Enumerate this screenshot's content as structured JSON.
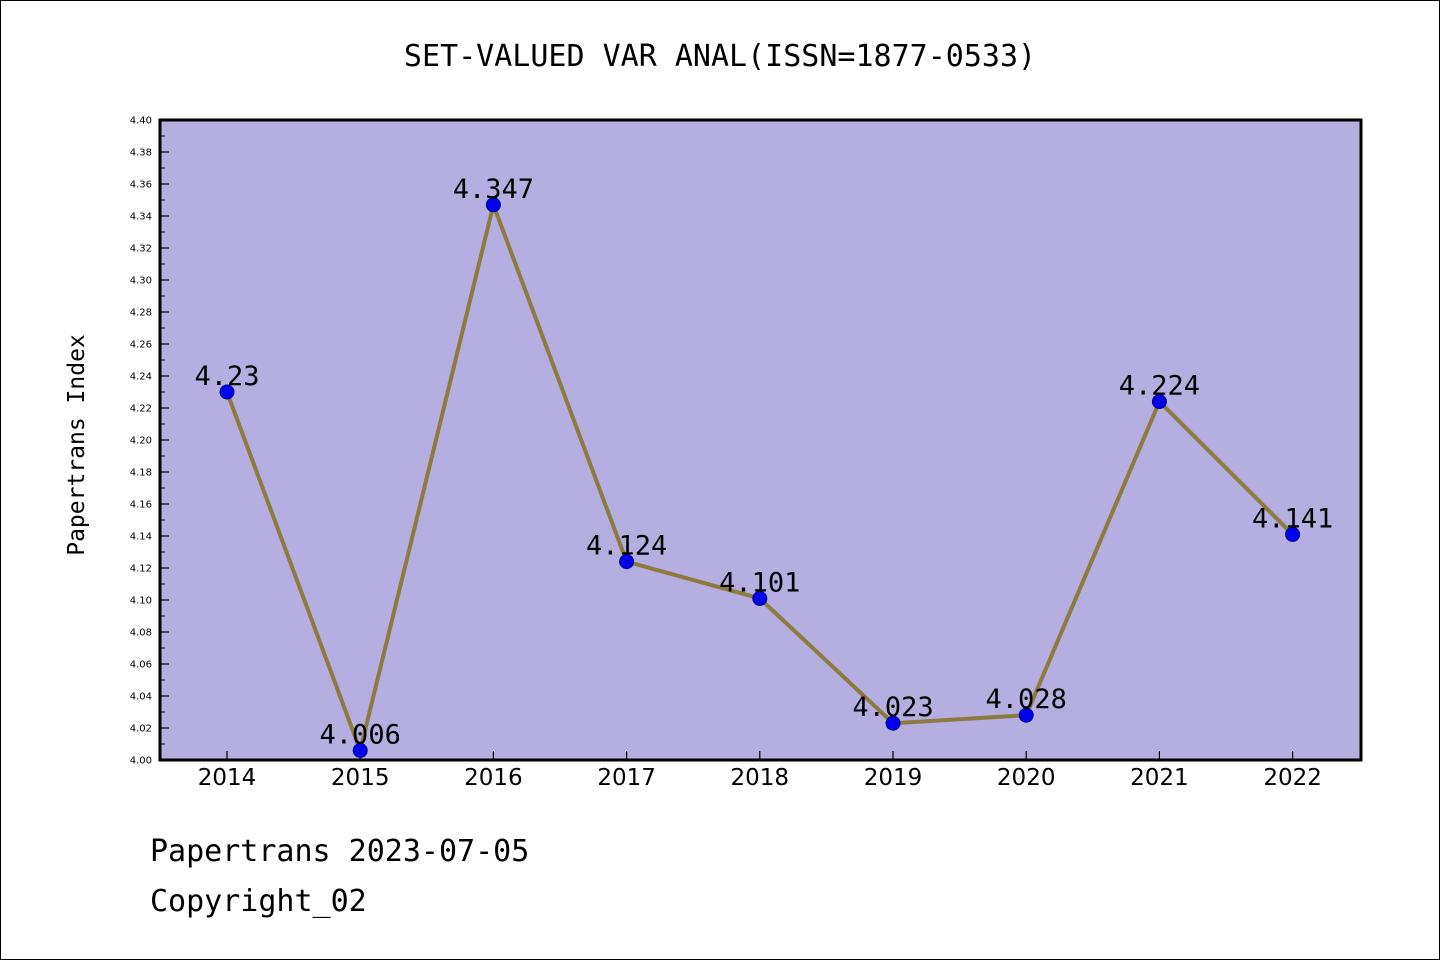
{
  "chart_data": {
    "type": "line",
    "title": "SET-VALUED VAR ANAL(ISSN=1877-0533)",
    "ylabel": "Papertrans Index",
    "xlabel": "",
    "categories": [
      "2014",
      "2015",
      "2016",
      "2017",
      "2018",
      "2019",
      "2020",
      "2021",
      "2022"
    ],
    "series": [
      {
        "values": [
          4.23,
          4.006,
          4.347,
          4.124,
          4.101,
          4.023,
          4.028,
          4.224,
          4.141
        ],
        "labels": [
          "4.23",
          "4.006",
          "4.347",
          "4.124",
          "4.101",
          "4.023",
          "4.028",
          "4.224",
          "4.141"
        ]
      }
    ],
    "ylim": [
      4.0,
      4.4
    ],
    "yticks": [
      "4.00",
      "4.02",
      "4.04",
      "4.06",
      "4.08",
      "4.10",
      "4.12",
      "4.14",
      "4.16",
      "4.18",
      "4.20",
      "4.22",
      "4.24",
      "4.26",
      "4.28",
      "4.30",
      "4.32",
      "4.34",
      "4.36",
      "4.38",
      "4.40"
    ],
    "grid": false,
    "colors": {
      "plot_background": "#b4aee1",
      "line": "#8c7b3c",
      "marker": "#0000ee",
      "marker_edge": "#00008b"
    }
  },
  "footer": {
    "date_line": "Papertrans 2023-07-05",
    "copyright_line": "Copyright_02"
  }
}
